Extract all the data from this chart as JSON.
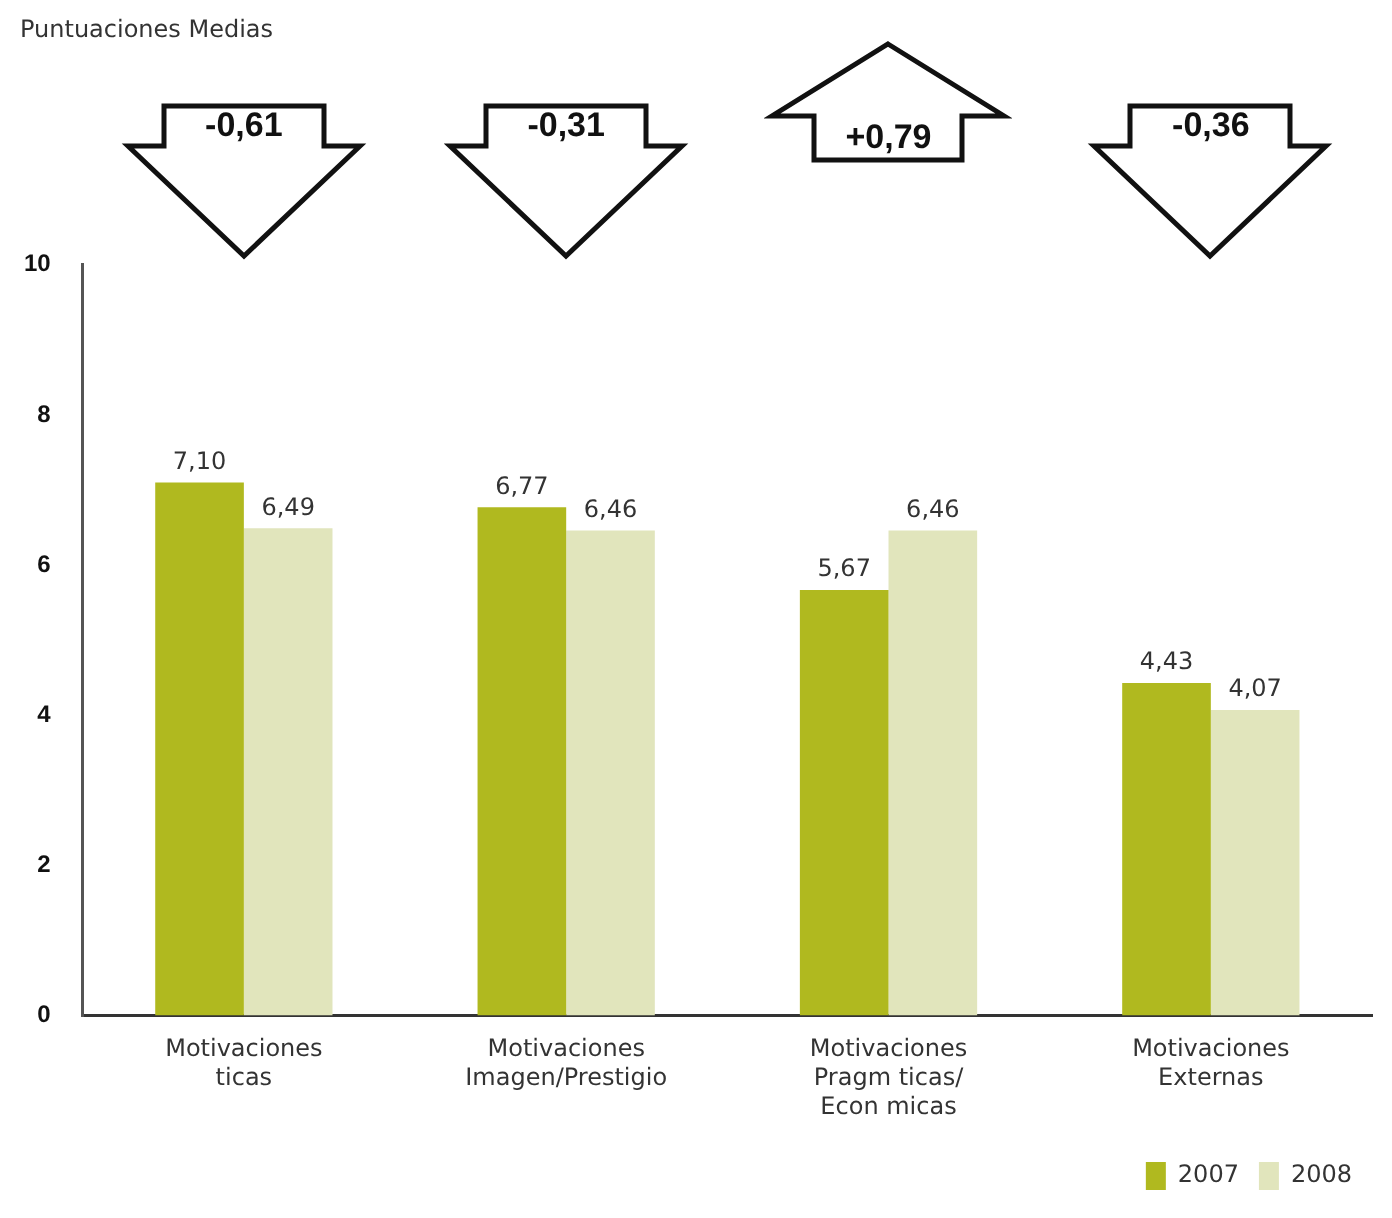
{
  "chart_data": {
    "type": "bar",
    "categories": [
      "Motivaciones\nticas",
      "Motivaciones\nImagen/Prestigio",
      "Motivaciones\nPragm ticas/\nEcon micas",
      "Motivaciones\nExternas"
    ],
    "series": [
      {
        "name": "2007",
        "color": "#b0b91f",
        "values": [
          7.1,
          6.77,
          5.67,
          4.43
        ],
        "value_labels": [
          "7,10",
          "6,77",
          "5,67",
          "4,43"
        ]
      },
      {
        "name": "2008",
        "color": "#e1e5bc",
        "values": [
          6.49,
          6.46,
          6.46,
          4.07
        ],
        "value_labels": [
          "6,49",
          "6,46",
          "6,46",
          "4,07"
        ]
      }
    ],
    "annotations": [
      "Puntuaciones Medias",
      "-0,61",
      "-0,31",
      "+0,79",
      "-0,36"
    ],
    "ylim": [
      0,
      10
    ],
    "yticks": [
      0,
      2,
      4,
      6,
      8,
      10
    ],
    "grid": false,
    "legend": "bottom right"
  }
}
